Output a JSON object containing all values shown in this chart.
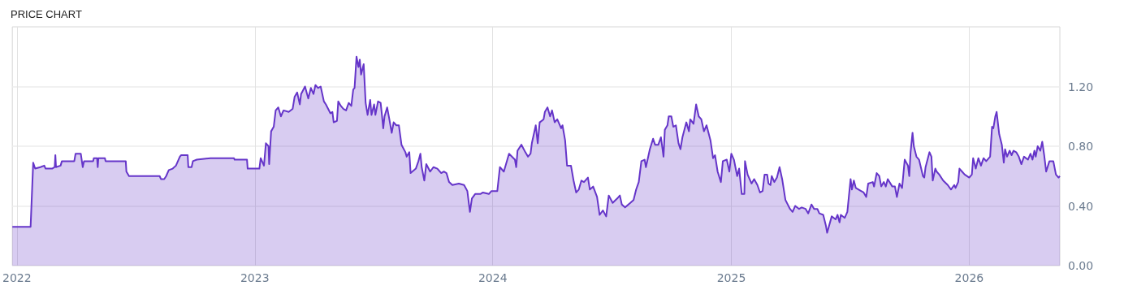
{
  "chart_data": {
    "type": "area",
    "title": "PRICE CHART",
    "series": [
      {
        "color": "#6535c9",
        "x": [
          "2021-12-25",
          "2022-01-22",
          "2022-01-26",
          "2022-01-29",
          "2022-02-06",
          "2022-02-12",
          "2022-02-14",
          "2022-02-24",
          "2022-02-28",
          "2022-03-01",
          "2022-03-02",
          "2022-03-09",
          "2022-03-11",
          "2022-03-30",
          "2022-04-01",
          "2022-04-09",
          "2022-04-12",
          "2022-04-14",
          "2022-04-28",
          "2022-04-29",
          "2022-05-04",
          "2022-05-05",
          "2022-05-06",
          "2022-05-16",
          "2022-05-17",
          "2022-06-17",
          "2022-06-18",
          "2022-06-22",
          "2022-08-08",
          "2022-08-10",
          "2022-08-15",
          "2022-08-18",
          "2022-08-22",
          "2022-08-28",
          "2022-09-02",
          "2022-09-08",
          "2022-09-10",
          "2022-09-20",
          "2022-09-21",
          "2022-09-26",
          "2022-09-28",
          "2022-10-04",
          "2022-10-25",
          "2022-11-30",
          "2022-12-01",
          "2022-12-20",
          "2022-12-21",
          "2023-01-08",
          "2023-01-10",
          "2023-01-15",
          "2023-01-18",
          "2023-01-22",
          "2023-01-23",
          "2023-01-26",
          "2023-01-30",
          "2023-02-02",
          "2023-02-06",
          "2023-02-10",
          "2023-02-14",
          "2023-02-22",
          "2023-02-28",
          "2023-03-03",
          "2023-03-07",
          "2023-03-11",
          "2023-03-13",
          "2023-03-19",
          "2023-03-24",
          "2023-03-28",
          "2023-04-01",
          "2023-04-04",
          "2023-04-08",
          "2023-04-12",
          "2023-04-17",
          "2023-04-20",
          "2023-04-27",
          "2023-04-30",
          "2023-05-02",
          "2023-05-07",
          "2023-05-09",
          "2023-05-13",
          "2023-05-17",
          "2023-05-21",
          "2023-05-25",
          "2023-05-29",
          "2023-06-01",
          "2023-06-03",
          "2023-06-06",
          "2023-06-09",
          "2023-06-11",
          "2023-06-13",
          "2023-06-17",
          "2023-06-20",
          "2023-06-23",
          "2023-06-27",
          "2023-06-29",
          "2023-07-03",
          "2023-07-05",
          "2023-07-09",
          "2023-07-13",
          "2023-07-15",
          "2023-07-17",
          "2023-07-19",
          "2023-07-23",
          "2023-07-26",
          "2023-07-30",
          "2023-08-02",
          "2023-08-06",
          "2023-08-10",
          "2023-08-14",
          "2023-08-20",
          "2023-08-22",
          "2023-08-26",
          "2023-08-28",
          "2023-09-05",
          "2023-09-09",
          "2023-09-12",
          "2023-09-14",
          "2023-09-18",
          "2023-09-21",
          "2023-09-27",
          "2023-10-02",
          "2023-10-08",
          "2023-10-14",
          "2023-10-18",
          "2023-10-22",
          "2023-10-26",
          "2023-10-31",
          "2023-11-10",
          "2023-11-18",
          "2023-11-23",
          "2023-11-27",
          "2023-11-30",
          "2023-12-05",
          "2023-12-13",
          "2023-12-17",
          "2023-12-26",
          "2023-12-30",
          "2024-01-08",
          "2024-01-12",
          "2024-01-18",
          "2024-01-26",
          "2024-02-04",
          "2024-02-06",
          "2024-02-08",
          "2024-02-14",
          "2024-02-20",
          "2024-02-24",
          "2024-02-28",
          "2024-03-01",
          "2024-03-07",
          "2024-03-10",
          "2024-03-13",
          "2024-03-19",
          "2024-03-21",
          "2024-03-25",
          "2024-03-29",
          "2024-04-01",
          "2024-04-05",
          "2024-04-09",
          "2024-04-15",
          "2024-04-17",
          "2024-04-21",
          "2024-04-24",
          "2024-04-30",
          "2024-05-04",
          "2024-05-08",
          "2024-05-12",
          "2024-05-16",
          "2024-05-20",
          "2024-05-26",
          "2024-05-29",
          "2024-06-03",
          "2024-06-09",
          "2024-06-13",
          "2024-06-18",
          "2024-06-23",
          "2024-06-27",
          "2024-07-03",
          "2024-07-10",
          "2024-07-14",
          "2024-07-17",
          "2024-07-22",
          "2024-07-30",
          "2024-08-04",
          "2024-08-08",
          "2024-08-12",
          "2024-08-16",
          "2024-08-21",
          "2024-08-23",
          "2024-08-29",
          "2024-09-03",
          "2024-09-06",
          "2024-09-11",
          "2024-09-15",
          "2024-09-19",
          "2024-09-21",
          "2024-09-25",
          "2024-09-27",
          "2024-10-01",
          "2024-10-04",
          "2024-10-08",
          "2024-10-12",
          "2024-10-15",
          "2024-10-18",
          "2024-10-24",
          "2024-10-28",
          "2024-10-30",
          "2024-11-04",
          "2024-11-08",
          "2024-11-12",
          "2024-11-16",
          "2024-11-20",
          "2024-11-24",
          "2024-11-30",
          "2024-12-04",
          "2024-12-07",
          "2024-12-11",
          "2024-12-16",
          "2024-12-19",
          "2024-12-25",
          "2024-12-29",
          "2025-01-01",
          "2025-01-05",
          "2025-01-10",
          "2025-01-13",
          "2025-01-17",
          "2025-01-21",
          "2025-01-22",
          "2025-01-26",
          "2025-02-01",
          "2025-02-05",
          "2025-02-10",
          "2025-02-14",
          "2025-02-18",
          "2025-02-21",
          "2025-02-25",
          "2025-02-27",
          "2025-03-02",
          "2025-03-04",
          "2025-03-08",
          "2025-03-12",
          "2025-03-16",
          "2025-03-20",
          "2025-03-25",
          "2025-04-01",
          "2025-04-05",
          "2025-04-09",
          "2025-04-15",
          "2025-04-19",
          "2025-04-25",
          "2025-04-29",
          "2025-05-04",
          "2025-05-08",
          "2025-05-13",
          "2025-05-16",
          "2025-05-22",
          "2025-05-26",
          "2025-05-28",
          "2025-06-04",
          "2025-06-10",
          "2025-06-13",
          "2025-06-16",
          "2025-06-18",
          "2025-06-24",
          "2025-06-28",
          "2025-07-03",
          "2025-07-05",
          "2025-07-08",
          "2025-07-11",
          "2025-07-19",
          "2025-07-23",
          "2025-07-27",
          "2025-07-30",
          "2025-08-06",
          "2025-08-08",
          "2025-08-12",
          "2025-08-16",
          "2025-08-19",
          "2025-08-23",
          "2025-08-26",
          "2025-08-29",
          "2025-09-05",
          "2025-09-09",
          "2025-09-12",
          "2025-09-16",
          "2025-09-20",
          "2025-09-24",
          "2025-09-29",
          "2025-10-01",
          "2025-10-03",
          "2025-10-06",
          "2025-10-08",
          "2025-10-12",
          "2025-10-16",
          "2025-10-22",
          "2025-10-24",
          "2025-10-26",
          "2025-11-01",
          "2025-11-04",
          "2025-11-06",
          "2025-11-10",
          "2025-11-12",
          "2025-11-16",
          "2025-11-22",
          "2025-11-29",
          "2025-12-04",
          "2025-12-09",
          "2025-12-11",
          "2025-12-15",
          "2025-12-17",
          "2025-12-21",
          "2025-12-25",
          "2026-01-01",
          "2026-01-05",
          "2026-01-07",
          "2026-01-11",
          "2026-01-15",
          "2026-01-19",
          "2026-01-23",
          "2026-01-27",
          "2026-02-02",
          "2026-02-05",
          "2026-02-07",
          "2026-02-10",
          "2026-02-12",
          "2026-02-16",
          "2026-02-20",
          "2026-02-23",
          "2026-02-25",
          "2026-02-28",
          "2026-03-04",
          "2026-03-07",
          "2026-03-10",
          "2026-03-14",
          "2026-03-18",
          "2026-03-22",
          "2026-03-26",
          "2026-04-01",
          "2026-04-05",
          "2026-04-08",
          "2026-04-11",
          "2026-04-13",
          "2026-04-16",
          "2026-04-20",
          "2026-04-23",
          "2026-04-26",
          "2026-04-29",
          "2026-05-04",
          "2026-05-10",
          "2026-05-14",
          "2026-05-18",
          "2026-05-20"
        ],
        "values": [
          0.26,
          0.26,
          0.69,
          0.65,
          0.66,
          0.67,
          0.65,
          0.65,
          0.66,
          0.74,
          0.66,
          0.67,
          0.7,
          0.7,
          0.75,
          0.75,
          0.66,
          0.7,
          0.7,
          0.72,
          0.72,
          0.66,
          0.72,
          0.72,
          0.7,
          0.7,
          0.63,
          0.6,
          0.6,
          0.58,
          0.58,
          0.6,
          0.64,
          0.65,
          0.67,
          0.73,
          0.74,
          0.74,
          0.66,
          0.66,
          0.7,
          0.71,
          0.72,
          0.72,
          0.71,
          0.71,
          0.65,
          0.65,
          0.72,
          0.67,
          0.82,
          0.8,
          0.68,
          0.9,
          0.93,
          1.04,
          1.06,
          1.0,
          1.04,
          1.03,
          1.05,
          1.13,
          1.16,
          1.08,
          1.15,
          1.2,
          1.12,
          1.19,
          1.15,
          1.21,
          1.19,
          1.2,
          1.1,
          1.08,
          1.02,
          1.03,
          0.96,
          0.97,
          1.1,
          1.07,
          1.05,
          1.04,
          1.09,
          1.07,
          1.18,
          1.19,
          1.4,
          1.33,
          1.38,
          1.28,
          1.35,
          1.09,
          1.01,
          1.11,
          1.01,
          1.08,
          1.01,
          1.1,
          1.09,
          1.01,
          0.92,
          1.0,
          1.06,
          0.99,
          0.89,
          0.96,
          0.94,
          0.94,
          0.81,
          0.76,
          0.73,
          0.76,
          0.62,
          0.65,
          0.7,
          0.75,
          0.66,
          0.57,
          0.68,
          0.63,
          0.66,
          0.65,
          0.62,
          0.63,
          0.62,
          0.56,
          0.54,
          0.55,
          0.54,
          0.5,
          0.36,
          0.45,
          0.48,
          0.48,
          0.49,
          0.48,
          0.5,
          0.5,
          0.66,
          0.63,
          0.75,
          0.71,
          0.66,
          0.77,
          0.81,
          0.76,
          0.73,
          0.75,
          0.82,
          0.94,
          0.82,
          0.96,
          0.98,
          1.03,
          1.06,
          1.0,
          1.04,
          0.96,
          0.98,
          0.92,
          0.94,
          0.84,
          0.67,
          0.67,
          0.57,
          0.49,
          0.51,
          0.57,
          0.56,
          0.59,
          0.51,
          0.53,
          0.46,
          0.34,
          0.37,
          0.33,
          0.47,
          0.42,
          0.45,
          0.47,
          0.41,
          0.39,
          0.42,
          0.44,
          0.51,
          0.56,
          0.7,
          0.71,
          0.66,
          0.78,
          0.85,
          0.81,
          0.81,
          0.86,
          0.73,
          0.91,
          0.94,
          1.0,
          1.0,
          0.93,
          0.94,
          0.82,
          0.78,
          0.86,
          0.96,
          0.9,
          0.98,
          0.95,
          1.08,
          1.0,
          0.98,
          0.9,
          0.94,
          0.84,
          0.72,
          0.74,
          0.63,
          0.56,
          0.7,
          0.71,
          0.63,
          0.75,
          0.71,
          0.6,
          0.65,
          0.48,
          0.48,
          0.7,
          0.61,
          0.55,
          0.58,
          0.54,
          0.49,
          0.5,
          0.61,
          0.61,
          0.55,
          0.54,
          0.6,
          0.56,
          0.59,
          0.66,
          0.58,
          0.44,
          0.38,
          0.36,
          0.4,
          0.38,
          0.39,
          0.38,
          0.35,
          0.41,
          0.38,
          0.38,
          0.35,
          0.34,
          0.27,
          0.22,
          0.33,
          0.31,
          0.34,
          0.29,
          0.34,
          0.32,
          0.36,
          0.58,
          0.51,
          0.57,
          0.52,
          0.5,
          0.49,
          0.46,
          0.55,
          0.56,
          0.53,
          0.62,
          0.6,
          0.53,
          0.56,
          0.53,
          0.58,
          0.53,
          0.53,
          0.46,
          0.55,
          0.52,
          0.71,
          0.67,
          0.6,
          0.76,
          0.89,
          0.8,
          0.73,
          0.71,
          0.6,
          0.59,
          0.66,
          0.76,
          0.73,
          0.57,
          0.65,
          0.63,
          0.61,
          0.57,
          0.54,
          0.51,
          0.54,
          0.52,
          0.56,
          0.65,
          0.63,
          0.61,
          0.59,
          0.61,
          0.72,
          0.65,
          0.72,
          0.67,
          0.72,
          0.7,
          0.73,
          0.93,
          0.92,
          1.0,
          1.03,
          0.88,
          0.81,
          0.69,
          0.78,
          0.73,
          0.77,
          0.74,
          0.77,
          0.76,
          0.73,
          0.68,
          0.73,
          0.71,
          0.75,
          0.71,
          0.77,
          0.73,
          0.8,
          0.77,
          0.83,
          0.74,
          0.63,
          0.7,
          0.7,
          0.61,
          0.59,
          0.6
        ]
      }
    ],
    "xlim": [
      "2021-12-25",
      "2026-05-20"
    ],
    "xticks": [
      "2022",
      "2023",
      "2024",
      "2025",
      "2026"
    ],
    "ylim": [
      0,
      1.6
    ],
    "yticks": [
      {
        "value": 0,
        "label": "0.00"
      },
      {
        "value": 0.4,
        "label": "0.40"
      },
      {
        "value": 0.8,
        "label": "0.80"
      },
      {
        "value": 1.2,
        "label": "1.20"
      }
    ],
    "grid": true
  }
}
